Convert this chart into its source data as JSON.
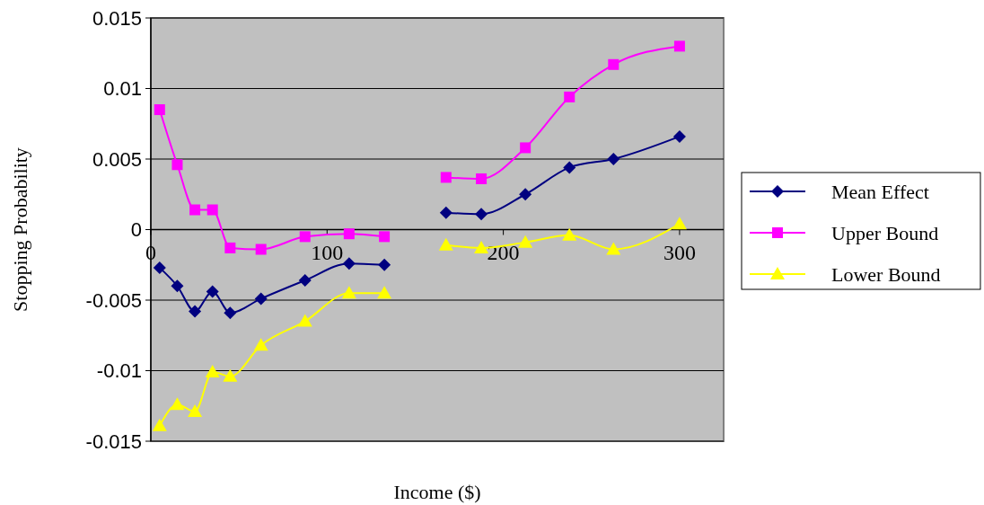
{
  "chart_data": {
    "type": "line",
    "xlabel": "Income ($)",
    "ylabel": "Stopping Probability",
    "x": [
      5,
      15,
      25,
      35,
      45,
      62.5,
      87.5,
      112.5,
      132.5,
      150,
      167.5,
      187.5,
      212.5,
      237.5,
      262.5,
      300
    ],
    "series": [
      {
        "name": "Mean Effect",
        "color": "#000080",
        "marker": "diamond",
        "values": [
          -0.0027,
          -0.004,
          -0.0058,
          -0.0044,
          -0.0059,
          -0.0049,
          -0.0036,
          -0.0024,
          -0.0025,
          null,
          0.0012,
          0.0011,
          0.0025,
          0.0044,
          0.005,
          0.0066
        ]
      },
      {
        "name": "Upper Bound",
        "color": "#ff00ff",
        "marker": "square",
        "values": [
          0.0085,
          0.0046,
          0.0014,
          0.0014,
          -0.0013,
          -0.0014,
          -0.0005,
          -0.0003,
          -0.0005,
          null,
          0.0037,
          0.0036,
          0.0058,
          0.0094,
          0.0117,
          0.013
        ]
      },
      {
        "name": "Lower Bound",
        "color": "#ffff00",
        "marker": "triangle",
        "values": [
          -0.0139,
          -0.0124,
          -0.0129,
          -0.0101,
          -0.0104,
          -0.0082,
          -0.0065,
          -0.0045,
          -0.0045,
          null,
          -0.0011,
          -0.0013,
          -0.0009,
          -0.0004,
          -0.0014,
          0.0004
        ]
      }
    ],
    "xlim": [
      0,
      325
    ],
    "xticks": [
      0,
      100,
      200,
      300
    ],
    "ylim": [
      -0.015,
      0.015
    ],
    "yticks": [
      -0.015,
      -0.01,
      -0.005,
      0,
      0.005,
      0.01,
      0.015
    ],
    "grid": "y",
    "legend": "right"
  }
}
